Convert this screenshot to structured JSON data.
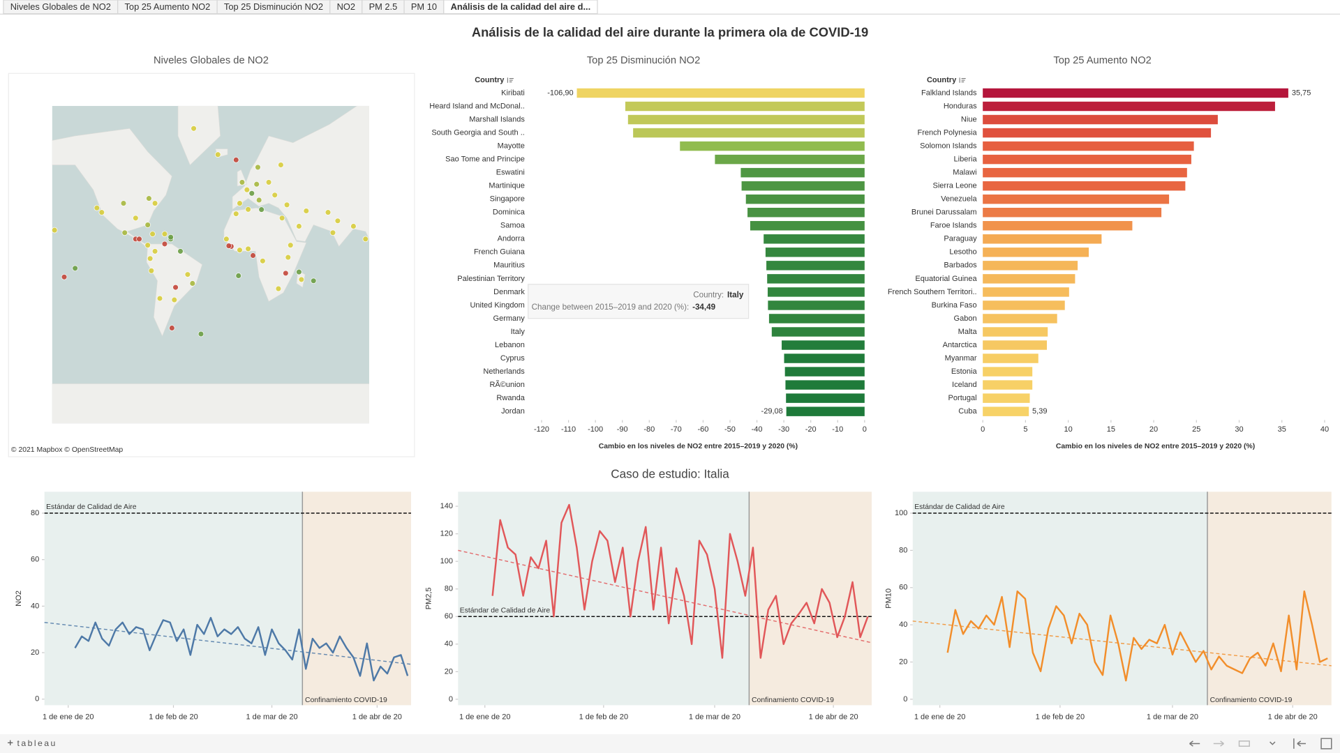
{
  "tabs": [
    {
      "label": "Niveles Globales de NO2",
      "active": false
    },
    {
      "label": "Top 25 Aumento NO2",
      "active": false
    },
    {
      "label": "Top 25 Disminución NO2",
      "active": false
    },
    {
      "label": "NO2",
      "active": false
    },
    {
      "label": "PM 2.5",
      "active": false
    },
    {
      "label": "PM 10",
      "active": false
    },
    {
      "label": "Análisis de la calidad del aire d...",
      "active": true
    }
  ],
  "title": "Análisis de la calidad del aire durante la primera ola de COVID-19",
  "map": {
    "title": "Niveles Globales de NO2",
    "attribution": "© 2021 Mapbox © OpenStreetMap",
    "points": [
      {
        "lon": -157,
        "lat": 21,
        "color": "#d8cd3c"
      },
      {
        "lon": -140,
        "lat": -10,
        "color": "#6c9f45"
      },
      {
        "lon": -149,
        "lat": -17,
        "color": "#c4473a"
      },
      {
        "lon": -122,
        "lat": 37,
        "color": "#d8cd3c"
      },
      {
        "lon": -118,
        "lat": 34,
        "color": "#d8cd3c"
      },
      {
        "lon": -100,
        "lat": 40,
        "color": "#a8b840"
      },
      {
        "lon": -90,
        "lat": 30,
        "color": "#d8cd3c"
      },
      {
        "lon": -79,
        "lat": 43,
        "color": "#a8b840"
      },
      {
        "lon": -74,
        "lat": 40,
        "color": "#d8cd3c"
      },
      {
        "lon": -80,
        "lat": 25,
        "color": "#a8b840"
      },
      {
        "lon": -99,
        "lat": 19,
        "color": "#a8b840"
      },
      {
        "lon": -90,
        "lat": 14,
        "color": "#c4473a"
      },
      {
        "lon": -87,
        "lat": 14,
        "color": "#c4473a"
      },
      {
        "lon": -80,
        "lat": 9,
        "color": "#d8cd3c"
      },
      {
        "lon": -76,
        "lat": 18,
        "color": "#d8cd3c"
      },
      {
        "lon": -66,
        "lat": 18,
        "color": "#d8cd3c"
      },
      {
        "lon": -61,
        "lat": 14,
        "color": "#6c9f45"
      },
      {
        "lon": -61,
        "lat": 15.5,
        "color": "#6c9f45"
      },
      {
        "lon": -74,
        "lat": 4,
        "color": "#d8cd3c"
      },
      {
        "lon": -66,
        "lat": 10,
        "color": "#c4473a"
      },
      {
        "lon": -78,
        "lat": -2,
        "color": "#d8cd3c"
      },
      {
        "lon": -77,
        "lat": -12,
        "color": "#d8cd3c"
      },
      {
        "lon": -47,
        "lat": -15,
        "color": "#d8cd3c"
      },
      {
        "lon": -43,
        "lat": -22,
        "color": "#a8b840"
      },
      {
        "lon": -58,
        "lat": -34,
        "color": "#d8cd3c"
      },
      {
        "lon": -70,
        "lat": -33,
        "color": "#d8cd3c"
      },
      {
        "lon": -53,
        "lat": 4,
        "color": "#6c9f45"
      },
      {
        "lon": -57,
        "lat": -25,
        "color": "#c4473a"
      },
      {
        "lon": -60,
        "lat": -51,
        "color": "#c4473a"
      },
      {
        "lon": -36,
        "lat": -54,
        "color": "#6c9f45"
      },
      {
        "lon": -42,
        "lat": 72,
        "color": "#d8cd3c"
      },
      {
        "lon": -22,
        "lat": 64,
        "color": "#d8cd3c"
      },
      {
        "lon": -7,
        "lat": 62,
        "color": "#c4473a"
      },
      {
        "lon": -2,
        "lat": 52,
        "color": "#a8b840"
      },
      {
        "lon": 10,
        "lat": 51,
        "color": "#a8b840"
      },
      {
        "lon": 2,
        "lat": 48,
        "color": "#d8cd3c"
      },
      {
        "lon": 12,
        "lat": 42,
        "color": "#a8b840"
      },
      {
        "lon": -4,
        "lat": 40,
        "color": "#d8cd3c"
      },
      {
        "lon": 20,
        "lat": 52,
        "color": "#d8cd3c"
      },
      {
        "lon": 30,
        "lat": 60,
        "color": "#d8cd3c"
      },
      {
        "lon": 25,
        "lat": 45,
        "color": "#d8cd3c"
      },
      {
        "lon": 35,
        "lat": 39,
        "color": "#d8cd3c"
      },
      {
        "lon": 31,
        "lat": 30,
        "color": "#d8cd3c"
      },
      {
        "lon": 3,
        "lat": 36,
        "color": "#d8cd3c"
      },
      {
        "lon": -7,
        "lat": 33,
        "color": "#d8cd3c"
      },
      {
        "lon": 11,
        "lat": 59,
        "color": "#a8b840"
      },
      {
        "lon": 6,
        "lat": 46,
        "color": "#6c9f45"
      },
      {
        "lon": 14,
        "lat": 35.9,
        "color": "#6c9f45"
      },
      {
        "lon": -15,
        "lat": 14,
        "color": "#d8cd3c"
      },
      {
        "lon": 3,
        "lat": 6,
        "color": "#d8cd3c"
      },
      {
        "lon": -4,
        "lat": 5,
        "color": "#d8cd3c"
      },
      {
        "lon": -11,
        "lat": 8,
        "color": "#c4473a"
      },
      {
        "lon": -13,
        "lat": 8.5,
        "color": "#c4473a"
      },
      {
        "lon": 36,
        "lat": -1,
        "color": "#d8cd3c"
      },
      {
        "lon": 15,
        "lat": -4,
        "color": "#d8cd3c"
      },
      {
        "lon": 38,
        "lat": 9,
        "color": "#d8cd3c"
      },
      {
        "lon": 28,
        "lat": -26,
        "color": "#d8cd3c"
      },
      {
        "lon": 34,
        "lat": -14,
        "color": "#c4473a"
      },
      {
        "lon": 47,
        "lat": -19,
        "color": "#d8cd3c"
      },
      {
        "lon": 45,
        "lat": 24,
        "color": "#d8cd3c"
      },
      {
        "lon": 51,
        "lat": 35,
        "color": "#d8cd3c"
      },
      {
        "lon": 69,
        "lat": 34,
        "color": "#d8cd3c"
      },
      {
        "lon": 73,
        "lat": 19,
        "color": "#d8cd3c"
      },
      {
        "lon": 77,
        "lat": 28,
        "color": "#d8cd3c"
      },
      {
        "lon": 90,
        "lat": 24,
        "color": "#d8cd3c"
      },
      {
        "lon": 100,
        "lat": 14,
        "color": "#d8cd3c"
      },
      {
        "lon": 7,
        "lat": 0.5,
        "color": "#c4473a"
      },
      {
        "lon": 57,
        "lat": -20,
        "color": "#6c9f45"
      },
      {
        "lon": 45,
        "lat": -13,
        "color": "#6c9f45"
      },
      {
        "lon": -5,
        "lat": -16,
        "color": "#6c9f45"
      }
    ]
  },
  "chart_data": [
    {
      "type": "barh",
      "title": "Top 25 Disminución NO2",
      "category_header": "Country",
      "categories": [
        "Kiribati",
        "Heard Island and McDonal..",
        "Marshall Islands",
        "South Georgia and South ..",
        "Mayotte",
        "Sao Tome and Principe",
        "Eswatini",
        "Martinique",
        "Singapore",
        "Dominica",
        "Samoa",
        "Andorra",
        "French Guiana",
        "Mauritius",
        "Palestinian Territory",
        "Denmark",
        "United Kingdom",
        "Germany",
        "Italy",
        "Lebanon",
        "Cyprus",
        "Netherlands",
        "RÃ©union",
        "Rwanda",
        "Jordan"
      ],
      "values": [
        -106.9,
        -88.9,
        -87.9,
        -86.0,
        -68.6,
        -55.6,
        -46.0,
        -45.7,
        -44.1,
        -43.5,
        -42.5,
        -37.5,
        -36.8,
        -36.5,
        -36.2,
        -36.0,
        -35.9,
        -35.5,
        -34.49,
        -30.8,
        -29.9,
        -29.6,
        -29.4,
        -29.2,
        -29.08
      ],
      "value_labels": [
        "-106,90",
        null,
        null,
        null,
        null,
        null,
        null,
        null,
        null,
        null,
        null,
        null,
        null,
        null,
        null,
        null,
        null,
        null,
        null,
        null,
        null,
        null,
        null,
        null,
        "-29,08"
      ],
      "xlim": [
        -125,
        2
      ],
      "xticks": [
        -120,
        -110,
        -100,
        -90,
        -80,
        -70,
        -60,
        -50,
        -40,
        -30,
        -20,
        -10,
        0
      ],
      "xlabel": "Cambio en los niveles de NO2 entre 2015–2019 y 2020 (%)",
      "color_scale": [
        "#efd462",
        "#8fbc4f",
        "#1e7a3a"
      ]
    },
    {
      "type": "barh",
      "title": "Top 25 Aumento NO2",
      "category_header": "Country",
      "categories": [
        "Falkland Islands",
        "Honduras",
        "Niue",
        "French Polynesia",
        "Solomon Islands",
        "Liberia",
        "Malawi",
        "Sierra Leone",
        "Venezuela",
        "Brunei Darussalam",
        "Faroe Islands",
        "Paraguay",
        "Lesotho",
        "Barbados",
        "Equatorial Guinea",
        "French Southern Territori..",
        "Burkina Faso",
        "Gabon",
        "Malta",
        "Antarctica",
        "Myanmar",
        "Estonia",
        "Iceland",
        "Portugal",
        "Cuba"
      ],
      "values": [
        35.75,
        34.2,
        27.5,
        26.7,
        24.7,
        24.4,
        23.9,
        23.7,
        21.8,
        20.9,
        17.5,
        13.9,
        12.4,
        11.1,
        10.8,
        10.1,
        9.6,
        8.7,
        7.6,
        7.5,
        6.5,
        5.8,
        5.8,
        5.5,
        5.39
      ],
      "value_labels": [
        "35,75",
        null,
        null,
        null,
        null,
        null,
        null,
        null,
        null,
        null,
        null,
        null,
        null,
        null,
        null,
        null,
        null,
        null,
        null,
        null,
        null,
        null,
        null,
        null,
        "5,39"
      ],
      "xlim": [
        -0.5,
        40.8
      ],
      "xticks": [
        0,
        5,
        10,
        15,
        20,
        25,
        30,
        35,
        40
      ],
      "xlabel": "Cambio en los niveles de NO2 entre 2015–2019 y 2020 (%)",
      "color_scale": [
        "#f7d267",
        "#f4a24f",
        "#e5583e",
        "#b5153b"
      ]
    },
    {
      "type": "line",
      "ylabel": "NO2",
      "color": "#4e79a7",
      "x": [
        "2020-01-03",
        "2020-01-05",
        "2020-01-07",
        "2020-01-09",
        "2020-01-11",
        "2020-01-13",
        "2020-01-15",
        "2020-01-17",
        "2020-01-19",
        "2020-01-21",
        "2020-01-23",
        "2020-01-25",
        "2020-01-27",
        "2020-01-29",
        "2020-01-31",
        "2020-02-02",
        "2020-02-04",
        "2020-02-06",
        "2020-02-08",
        "2020-02-10",
        "2020-02-12",
        "2020-02-14",
        "2020-02-16",
        "2020-02-18",
        "2020-02-20",
        "2020-02-22",
        "2020-02-24",
        "2020-02-26",
        "2020-02-28",
        "2020-03-01",
        "2020-03-03",
        "2020-03-05",
        "2020-03-07",
        "2020-03-09",
        "2020-03-11",
        "2020-03-13",
        "2020-03-15",
        "2020-03-17",
        "2020-03-19",
        "2020-03-21",
        "2020-03-23",
        "2020-03-25",
        "2020-03-27",
        "2020-03-29",
        "2020-03-31",
        "2020-04-02",
        "2020-04-04",
        "2020-04-06",
        "2020-04-08",
        "2020-04-10"
      ],
      "values": [
        22,
        27,
        25,
        33,
        26,
        23,
        30,
        33,
        28,
        31,
        30,
        21,
        28,
        34,
        33,
        25,
        30,
        19,
        32,
        28,
        35,
        27,
        30,
        28,
        31,
        26,
        24,
        31,
        19,
        30,
        24,
        21,
        17,
        30,
        13,
        26,
        22,
        24,
        20,
        27,
        22,
        18,
        10,
        24,
        8,
        14,
        11,
        18,
        19,
        10
      ],
      "xlim": [
        "2019-12-25",
        "2020-04-11"
      ],
      "xticks": [
        {
          "value": "2020-01-01",
          "label": "1 de ene de 20"
        },
        {
          "value": "2020-02-01",
          "label": "1 de feb de 20"
        },
        {
          "value": "2020-03-01",
          "label": "1 de mar de 20"
        },
        {
          "value": "2020-04-01",
          "label": "1 de abr de 20"
        }
      ],
      "ylim": [
        -2.6,
        89.2
      ],
      "yticks": [
        0,
        20,
        40,
        60,
        80
      ],
      "reference_line": {
        "value": 80,
        "label": "Estándar de Calidad de Aire"
      },
      "event": {
        "x": "2020-03-10",
        "label": "Confinamiento COVID-19"
      },
      "trend": {
        "x": [
          "2019-12-25",
          "2020-04-11"
        ],
        "values": [
          33,
          15
        ]
      },
      "zone_colors": [
        "#e8f0ee",
        "#f5ebdf"
      ]
    },
    {
      "type": "line",
      "ylabel": "PM2,5",
      "color": "#e15759",
      "x": [
        "2020-01-03",
        "2020-01-05",
        "2020-01-07",
        "2020-01-09",
        "2020-01-11",
        "2020-01-13",
        "2020-01-15",
        "2020-01-17",
        "2020-01-19",
        "2020-01-21",
        "2020-01-23",
        "2020-01-25",
        "2020-01-27",
        "2020-01-29",
        "2020-01-31",
        "2020-02-02",
        "2020-02-04",
        "2020-02-06",
        "2020-02-08",
        "2020-02-10",
        "2020-02-12",
        "2020-02-14",
        "2020-02-16",
        "2020-02-18",
        "2020-02-20",
        "2020-02-22",
        "2020-02-24",
        "2020-02-26",
        "2020-02-28",
        "2020-03-01",
        "2020-03-03",
        "2020-03-05",
        "2020-03-07",
        "2020-03-09",
        "2020-03-11",
        "2020-03-13",
        "2020-03-15",
        "2020-03-17",
        "2020-03-19",
        "2020-03-21",
        "2020-03-23",
        "2020-03-25",
        "2020-03-27",
        "2020-03-29",
        "2020-03-31",
        "2020-04-02",
        "2020-04-04",
        "2020-04-06",
        "2020-04-08",
        "2020-04-10"
      ],
      "values": [
        75,
        130,
        110,
        105,
        75,
        103,
        95,
        115,
        60,
        128,
        141,
        110,
        65,
        100,
        122,
        115,
        85,
        110,
        60,
        100,
        125,
        65,
        110,
        55,
        95,
        75,
        40,
        115,
        105,
        80,
        30,
        120,
        100,
        75,
        110,
        30,
        65,
        75,
        40,
        55,
        62,
        70,
        55,
        80,
        70,
        45,
        60,
        85,
        45,
        60
      ],
      "xlim": [
        "2019-12-25",
        "2020-04-11"
      ],
      "xticks": [
        {
          "value": "2020-01-01",
          "label": "1 de ene de 20"
        },
        {
          "value": "2020-02-01",
          "label": "1 de feb de 20"
        },
        {
          "value": "2020-03-01",
          "label": "1 de mar de 20"
        },
        {
          "value": "2020-04-01",
          "label": "1 de abr de 20"
        }
      ],
      "ylim": [
        -4.3,
        150.5
      ],
      "yticks": [
        0,
        20,
        40,
        60,
        80,
        100,
        120,
        140
      ],
      "reference_line": {
        "value": 60,
        "label": "Estándar de Calidad de Aire"
      },
      "event": {
        "x": "2020-03-10",
        "label": "Confinamiento COVID-19"
      },
      "trend": {
        "x": [
          "2019-12-25",
          "2020-04-11"
        ],
        "values": [
          108,
          41
        ]
      },
      "zone_colors": [
        "#e8f0ee",
        "#f5ebdf"
      ]
    },
    {
      "type": "line",
      "ylabel": "PM10",
      "color": "#f28e2b",
      "x": [
        "2020-01-03",
        "2020-01-05",
        "2020-01-07",
        "2020-01-09",
        "2020-01-11",
        "2020-01-13",
        "2020-01-15",
        "2020-01-17",
        "2020-01-19",
        "2020-01-21",
        "2020-01-23",
        "2020-01-25",
        "2020-01-27",
        "2020-01-29",
        "2020-01-31",
        "2020-02-02",
        "2020-02-04",
        "2020-02-06",
        "2020-02-08",
        "2020-02-10",
        "2020-02-12",
        "2020-02-14",
        "2020-02-16",
        "2020-02-18",
        "2020-02-20",
        "2020-02-22",
        "2020-02-24",
        "2020-02-26",
        "2020-02-28",
        "2020-03-01",
        "2020-03-03",
        "2020-03-05",
        "2020-03-07",
        "2020-03-09",
        "2020-03-11",
        "2020-03-13",
        "2020-03-15",
        "2020-03-17",
        "2020-03-19",
        "2020-03-21",
        "2020-03-23",
        "2020-03-25",
        "2020-03-27",
        "2020-03-29",
        "2020-03-31",
        "2020-04-02",
        "2020-04-04",
        "2020-04-06",
        "2020-04-08",
        "2020-04-10"
      ],
      "values": [
        25,
        48,
        35,
        42,
        38,
        45,
        40,
        55,
        28,
        58,
        54,
        25,
        15,
        38,
        50,
        45,
        30,
        46,
        40,
        20,
        13,
        45,
        30,
        10,
        33,
        27,
        32,
        30,
        40,
        24,
        36,
        28,
        20,
        26,
        16,
        23,
        18,
        16,
        14,
        22,
        25,
        18,
        30,
        15,
        45,
        16,
        58,
        40,
        20,
        22
      ],
      "xlim": [
        "2019-12-25",
        "2020-04-11"
      ],
      "xticks": [
        {
          "value": "2020-01-01",
          "label": "1 de ene de 20"
        },
        {
          "value": "2020-02-01",
          "label": "1 de feb de 20"
        },
        {
          "value": "2020-03-01",
          "label": "1 de mar de 20"
        },
        {
          "value": "2020-04-01",
          "label": "1 de abr de 20"
        }
      ],
      "ylim": [
        -3.2,
        111.5
      ],
      "yticks": [
        0,
        20,
        40,
        60,
        80,
        100
      ],
      "reference_line": {
        "value": 100,
        "label": "Estándar de Calidad de Aire"
      },
      "event": {
        "x": "2020-03-10",
        "label": "Confinamiento COVID-19"
      },
      "trend": {
        "x": [
          "2019-12-25",
          "2020-04-11"
        ],
        "values": [
          42,
          18
        ]
      },
      "zone_colors": [
        "#e8f0ee",
        "#f5ebdf"
      ]
    }
  ],
  "section_title": "Caso de estudio: Italia",
  "tooltip": {
    "country_label": "Country:",
    "country": "Italy",
    "value_label": "Change between 2015–2019 and 2020 (%):",
    "value": "-34,49"
  },
  "brand": "tableau"
}
